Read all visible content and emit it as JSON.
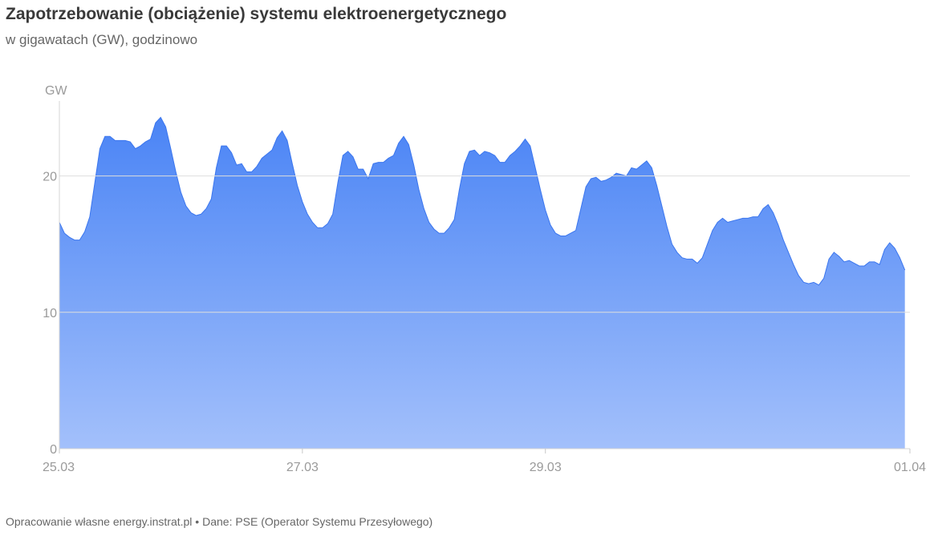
{
  "title": "Zapotrzebowanie (obciążenie) systemu elektroenergetycznego",
  "subtitle": "w gigawatach (GW), godzinowo",
  "footer": "Opracowanie własne energy.instrat.pl • Dane: PSE (Operator Systemu Przesyłowego)",
  "colors": {
    "fill_top": "#4a84f5",
    "fill_bottom": "#a3c0fb",
    "line": "#3b76ee",
    "grid": "#dddddd"
  },
  "chart_data": {
    "type": "area",
    "title": "Zapotrzebowanie (obciążenie) systemu elektroenergetycznego",
    "ylabel": "GW",
    "ylim": [
      0,
      25.5
    ],
    "xlim": [
      "25.03 00:00",
      "01.04 00:00"
    ],
    "y_ticks": [
      0,
      10,
      20
    ],
    "x_ticks": [
      "25.03",
      "27.03",
      "29.03",
      "01.04"
    ],
    "grid": "horizontal",
    "series": [
      {
        "name": "",
        "x_start": "25.03 00:00",
        "interval": "1h",
        "values": [
          16.6,
          15.8,
          15.5,
          15.3,
          15.3,
          15.9,
          17.0,
          19.5,
          22.0,
          22.9,
          22.9,
          22.6,
          22.6,
          22.6,
          22.5,
          22.0,
          22.2,
          22.5,
          22.7,
          23.9,
          24.3,
          23.6,
          22.0,
          20.3,
          18.8,
          17.8,
          17.3,
          17.1,
          17.2,
          17.6,
          18.3,
          20.6,
          22.2,
          22.2,
          21.7,
          20.8,
          20.9,
          20.3,
          20.3,
          20.7,
          21.3,
          21.6,
          21.9,
          22.8,
          23.3,
          22.6,
          20.9,
          19.3,
          18.1,
          17.2,
          16.6,
          16.2,
          16.2,
          16.5,
          17.2,
          19.5,
          21.5,
          21.8,
          21.4,
          20.5,
          20.5,
          19.8,
          20.9,
          21.0,
          21.0,
          21.3,
          21.5,
          22.4,
          22.9,
          22.3,
          20.8,
          19.0,
          17.6,
          16.6,
          16.1,
          15.8,
          15.8,
          16.2,
          16.8,
          19.0,
          20.9,
          21.8,
          21.9,
          21.5,
          21.8,
          21.7,
          21.5,
          21.0,
          21.0,
          21.5,
          21.8,
          22.2,
          22.7,
          22.2,
          20.6,
          19.0,
          17.5,
          16.4,
          15.8,
          15.6,
          15.6,
          15.8,
          16.0,
          17.6,
          19.2,
          19.8,
          19.9,
          19.6,
          19.7,
          19.9,
          20.2,
          20.1,
          20.0,
          20.6,
          20.5,
          20.8,
          21.1,
          20.6,
          19.3,
          17.8,
          16.3,
          15.0,
          14.4,
          14.0,
          13.9,
          13.9,
          13.6,
          14.0,
          15.0,
          16.0,
          16.6,
          16.9,
          16.6,
          16.7,
          16.8,
          16.9,
          16.9,
          17.0,
          17.0,
          17.6,
          17.9,
          17.3,
          16.4,
          15.3,
          14.4,
          13.5,
          12.7,
          12.2,
          12.1,
          12.2,
          12.0,
          12.5,
          13.9,
          14.4,
          14.1,
          13.7,
          13.8,
          13.6,
          13.4,
          13.4,
          13.7,
          13.7,
          13.5,
          14.6,
          15.1,
          14.7,
          14.0,
          13.1
        ]
      }
    ]
  }
}
